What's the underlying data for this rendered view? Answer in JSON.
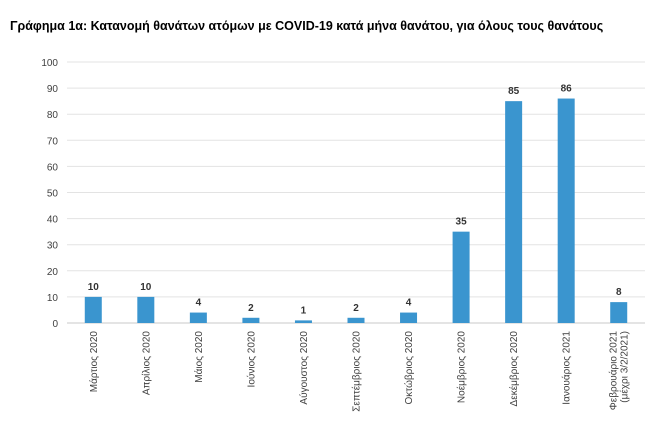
{
  "header": {
    "title": "Γράφημα 1α: Κατανομή θανάτων ατόμων με COVID-19 κατά μήνα θανάτου, για όλους τους θανάτους"
  },
  "colors": {
    "bar": "#3a95cf",
    "grid": "#e3e3e3",
    "axis": "#c8c8c8",
    "text": "#404040"
  },
  "chart_data": {
    "type": "bar",
    "title": "Γράφημα 1α: Κατανομή θανάτων ατόμων με COVID-19 κατά μήνα θανάτου, για όλους τους θανάτους",
    "xlabel": "",
    "ylabel": "",
    "ylim": [
      0,
      100
    ],
    "yticks": [
      0,
      10,
      20,
      30,
      40,
      50,
      60,
      70,
      80,
      90,
      100
    ],
    "grid": true,
    "legend": "none",
    "categories": [
      "Μάρτιος 2020",
      "Απρίλιος 2020",
      "Μάιος 2020",
      "Ιούνιος 2020",
      "Αύγουστος 2020",
      "Σεπτέμβριος 2020",
      "Οκτώβριος 2020",
      "Νοέμβριος 2020",
      "Δεκέμβριος 2020",
      "Ιανουάριος 2021",
      "Φεβρουάριο 2021|(μέχρι 3/2/2021)"
    ],
    "values": [
      10,
      10,
      4,
      2,
      1,
      2,
      4,
      35,
      85,
      86,
      8
    ]
  }
}
